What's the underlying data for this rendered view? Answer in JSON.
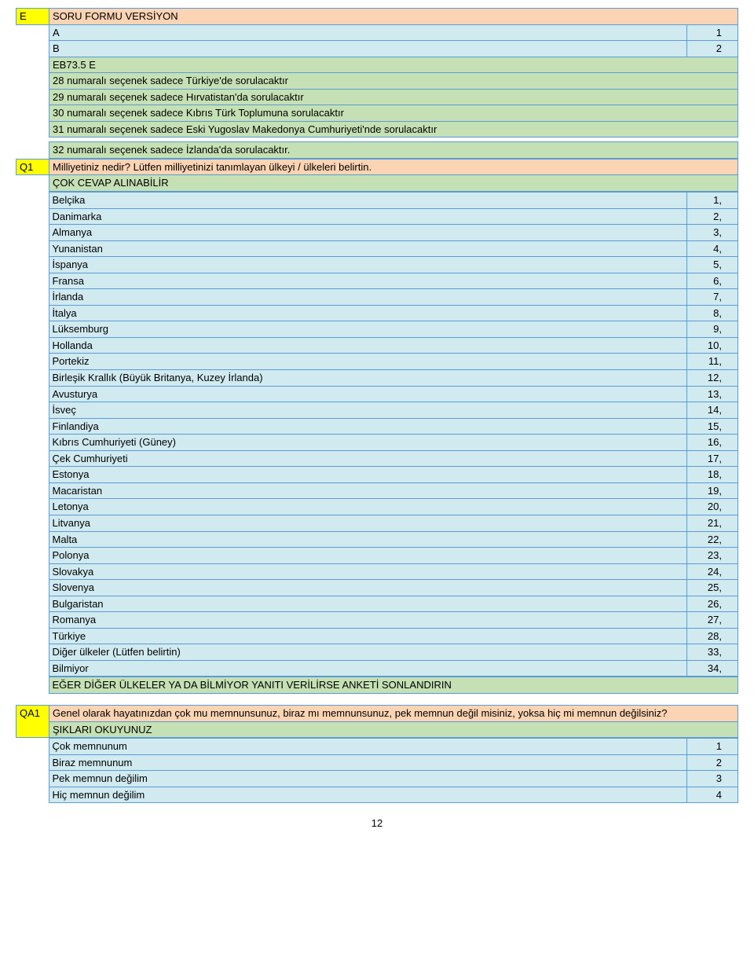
{
  "sectionE": {
    "code": "E",
    "title": "SORU FORMU VERSİYON",
    "rows": [
      {
        "label": "A",
        "value": "1"
      },
      {
        "label": "B",
        "value": "2"
      },
      {
        "label": "EB73.5 E",
        "value": ""
      }
    ],
    "notes": [
      "28 numaralı seçenek sadece Türkiye'de sorulacaktır",
      "29 numaralı seçenek sadece Hırvatistan'da sorulacaktır",
      "30 numaralı seçenek sadece Kıbrıs Türk Toplumuna sorulacaktır",
      "31 numaralı seçenek sadece Eski Yugoslav Makedonya Cumhuriyeti'nde sorulacaktır",
      "32 numaralı seçenek sadece İzlanda'da sorulacaktır."
    ]
  },
  "q1": {
    "code": "Q1",
    "question": "Milliyetiniz nedir? Lütfen milliyetinizi tanımlayan ülkeyi / ülkeleri belirtin.",
    "instruction": "ÇOK CEVAP ALINABİLİR",
    "options": [
      {
        "label": "Belçika",
        "value": "1,"
      },
      {
        "label": "Danimarka",
        "value": "2,"
      },
      {
        "label": "Almanya",
        "value": "3,"
      },
      {
        "label": "Yunanistan",
        "value": "4,"
      },
      {
        "label": "İspanya",
        "value": "5,"
      },
      {
        "label": "Fransa",
        "value": "6,"
      },
      {
        "label": "İrlanda",
        "value": "7,"
      },
      {
        "label": "İtalya",
        "value": "8,"
      },
      {
        "label": "Lüksemburg",
        "value": "9,"
      },
      {
        "label": "Hollanda",
        "value": "10,"
      },
      {
        "label": "Portekiz",
        "value": "11,"
      },
      {
        "label": "Birleşik Krallık (Büyük Britanya, Kuzey İrlanda)",
        "value": "12,"
      },
      {
        "label": "Avusturya",
        "value": "13,"
      },
      {
        "label": "İsveç",
        "value": "14,"
      },
      {
        "label": "Finlandiya",
        "value": "15,"
      },
      {
        "label": "Kıbrıs Cumhuriyeti (Güney)",
        "value": "16,"
      },
      {
        "label": "Çek Cumhuriyeti",
        "value": "17,"
      },
      {
        "label": "Estonya",
        "value": "18,"
      },
      {
        "label": "Macaristan",
        "value": "19,"
      },
      {
        "label": "Letonya",
        "value": "20,"
      },
      {
        "label": "Litvanya",
        "value": "21,"
      },
      {
        "label": "Malta",
        "value": "22,"
      },
      {
        "label": "Polonya",
        "value": "23,"
      },
      {
        "label": "Slovakya",
        "value": "24,"
      },
      {
        "label": "Slovenya",
        "value": "25,"
      },
      {
        "label": "Bulgaristan",
        "value": "26,"
      },
      {
        "label": "Romanya",
        "value": "27,"
      },
      {
        "label": "Türkiye",
        "value": "28,"
      },
      {
        "label": "Diğer ülkeler (Lütfen belirtin)",
        "value": "33,"
      },
      {
        "label": "Bilmiyor",
        "value": "34,"
      }
    ],
    "footer": "EĞER DİĞER ÜLKELER YA DA BİLMİYOR YANITI VERİLİRSE ANKETİ SONLANDIRIN"
  },
  "qa1": {
    "code": "QA1",
    "question": "Genel olarak hayatınızdan çok mu memnunsunuz, biraz mı memnunsunuz, pek memnun değil misiniz, yoksa hiç mi memnun değilsiniz?",
    "instruction": "ŞIKLARI OKUYUNUZ",
    "options": [
      {
        "label": "Çok memnunum",
        "value": "1"
      },
      {
        "label": "Biraz memnunum",
        "value": "2"
      },
      {
        "label": "Pek memnun değilim",
        "value": "3"
      },
      {
        "label": "Hiç memnun değilim",
        "value": "4"
      }
    ]
  },
  "pageNumber": "12"
}
